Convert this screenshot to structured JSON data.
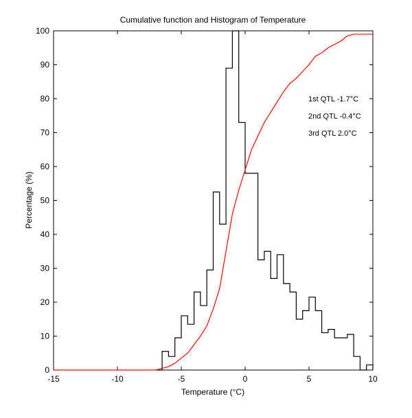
{
  "chart_data": {
    "type": "line",
    "title": "Cumulative function and Histogram of Temperature",
    "xlabel": "Temperature (°C)",
    "ylabel": "Percentage (%)",
    "xlim": [
      -15,
      10
    ],
    "ylim": [
      0,
      100
    ],
    "xticks": [
      -15,
      -10,
      -5,
      0,
      5,
      10
    ],
    "yticks": [
      0,
      10,
      20,
      30,
      40,
      50,
      60,
      70,
      80,
      90,
      100
    ],
    "grid": false,
    "series": [
      {
        "name": "Histogram",
        "kind": "stairs",
        "color": "#000000",
        "bin_edges": [
          -7,
          -6.5,
          -6,
          -5.5,
          -5,
          -4.5,
          -4,
          -3.5,
          -3,
          -2.5,
          -2,
          -1.5,
          -1,
          -0.5,
          0,
          0.5,
          1,
          1.5,
          2,
          2.5,
          3,
          3.5,
          4,
          4.5,
          5,
          5.5,
          6,
          6.5,
          7,
          7.5,
          8,
          8.5,
          9,
          9.5,
          10
        ],
        "values": [
          0,
          5.5,
          4,
          9.5,
          16,
          13.5,
          23,
          19,
          29.5,
          52.5,
          43,
          89,
          100,
          73,
          58,
          58,
          32.5,
          35,
          27,
          34,
          25.5,
          23,
          15,
          17.5,
          21.5,
          17.5,
          11,
          12,
          9.5,
          9.5,
          10.5,
          4,
          0,
          1.5
        ]
      },
      {
        "name": "Cumulative",
        "kind": "line",
        "color": "#ff0000",
        "x": [
          -15,
          -7,
          -6.5,
          -6,
          -5.5,
          -5,
          -4.5,
          -4,
          -3.5,
          -3,
          -2.5,
          -2,
          -1.5,
          -1,
          -0.5,
          0,
          0.5,
          1,
          1.5,
          2,
          2.5,
          3,
          3.5,
          4,
          4.5,
          5,
          5.5,
          6,
          6.5,
          7,
          7.5,
          8,
          8.5,
          9,
          10
        ],
        "y": [
          0,
          0,
          0.5,
          1,
          2,
          3.5,
          5,
          7.5,
          10,
          13,
          18,
          24,
          35,
          46,
          53,
          59,
          65,
          69,
          73,
          76,
          79,
          82,
          84.5,
          86,
          88,
          90,
          92.5,
          93.5,
          95,
          96,
          97,
          98.5,
          99,
          99,
          99
        ]
      }
    ],
    "annotations": [
      {
        "text": "1st QTL -1.7°C",
        "color": "#ff0000"
      },
      {
        "text": "2nd QTL -0.4°C",
        "color": "#ff0000"
      },
      {
        "text": "3rd QTL  2.0°C",
        "color": "#ff0000"
      }
    ]
  }
}
